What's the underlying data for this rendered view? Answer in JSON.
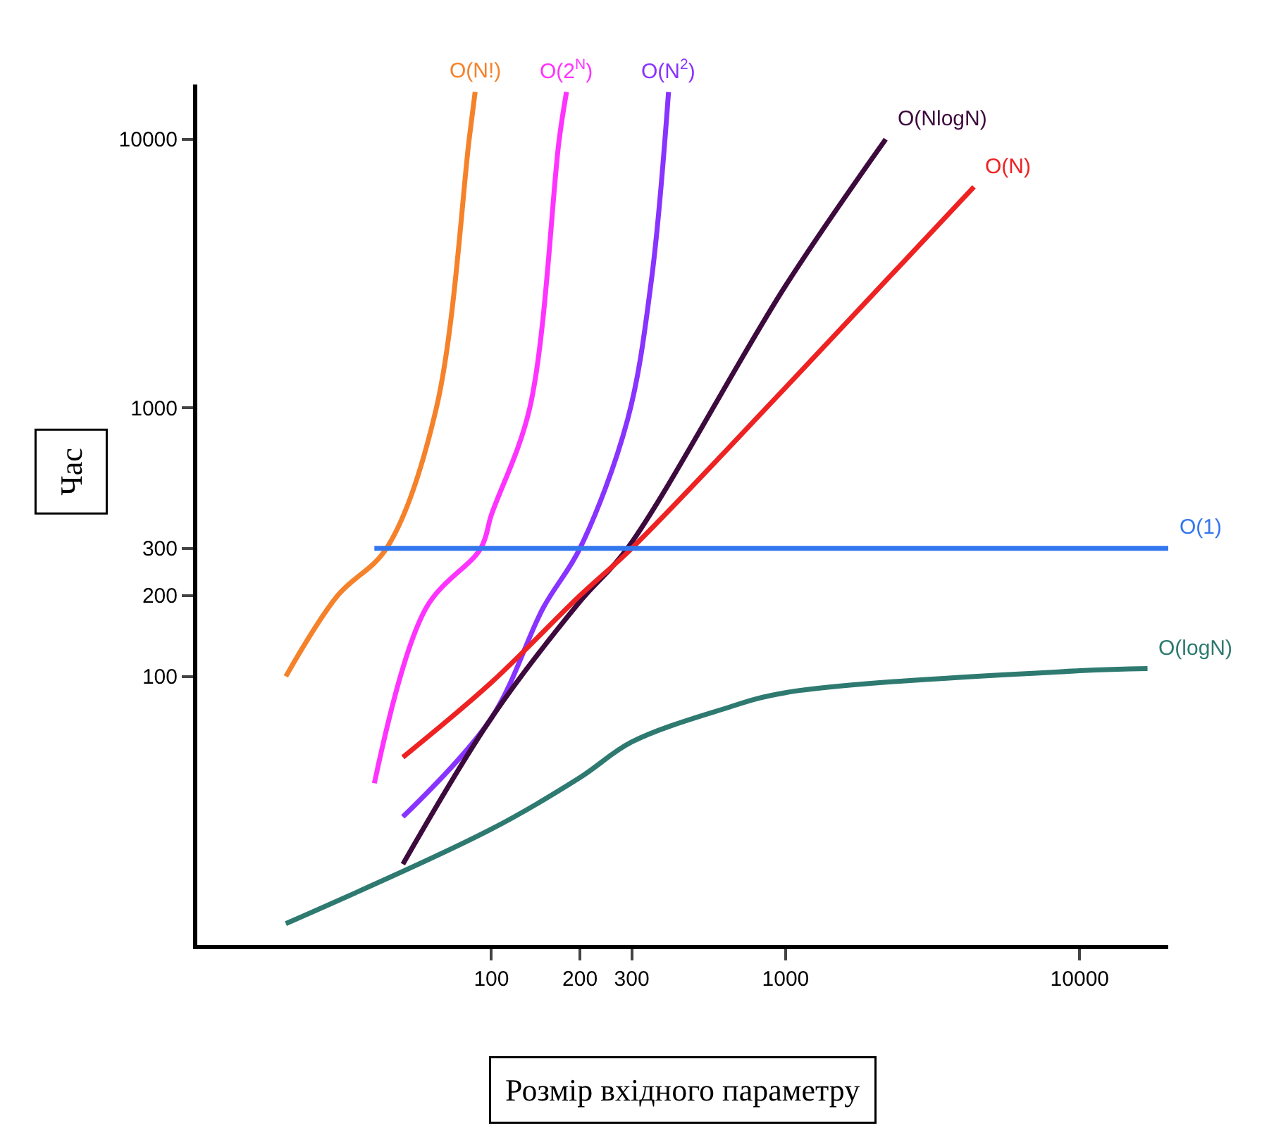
{
  "chart_data": {
    "type": "line",
    "xlabel": "Розмір вхідного параметру",
    "ylabel": "Час",
    "log": "xy",
    "grid": false,
    "legend": false,
    "marker": "none",
    "line_style": "solid",
    "xlim": [
      10,
      20000
    ],
    "ylim": [
      10,
      16000
    ],
    "xticks": [
      100,
      200,
      300,
      1000,
      10000
    ],
    "yticks": [
      100,
      200,
      300,
      1000,
      10000
    ],
    "series": [
      {
        "name": "O(N!)",
        "color": "#f5822a",
        "x": [
          20,
          30,
          44,
          65,
          84,
          88
        ],
        "values": [
          100,
          200,
          300,
          1000,
          10000,
          15000
        ]
      },
      {
        "name": "O(2$^{N}$)",
        "color": "#ff33ff",
        "x": [
          40,
          60,
          92,
          100,
          135,
          170,
          180
        ],
        "values": [
          40,
          180,
          300,
          400,
          1000,
          10000,
          15000
        ]
      },
      {
        "name": "O(N$^{2}$)",
        "color": "#8833ff",
        "x": [
          50,
          100,
          150,
          200,
          290,
          350,
          400
        ],
        "values": [
          30,
          70,
          180,
          300,
          900,
          3000,
          15000
        ]
      },
      {
        "name": "O(NlogN)",
        "color": "#3d0a3d",
        "x": [
          50,
          100,
          200,
          290,
          1000,
          2190
        ],
        "values": [
          20,
          70,
          190,
          300,
          2850,
          10000
        ]
      },
      {
        "name": "O(N)",
        "color": "#ee2222",
        "x": [
          50,
          100,
          200,
          300,
          1000,
          4370
        ],
        "values": [
          50,
          95,
          200,
          300,
          1190,
          6650
        ]
      },
      {
        "name": "O(1)",
        "color": "#3377ee",
        "x": [
          40,
          20000
        ],
        "values": [
          300,
          300
        ]
      },
      {
        "name": "O(logN)",
        "color": "#2e7a70",
        "x": [
          20,
          100,
          200,
          300,
          600,
          1000,
          10000,
          17000
        ],
        "values": [
          12,
          27,
          42,
          57,
          75,
          87,
          105,
          107
        ]
      }
    ]
  }
}
